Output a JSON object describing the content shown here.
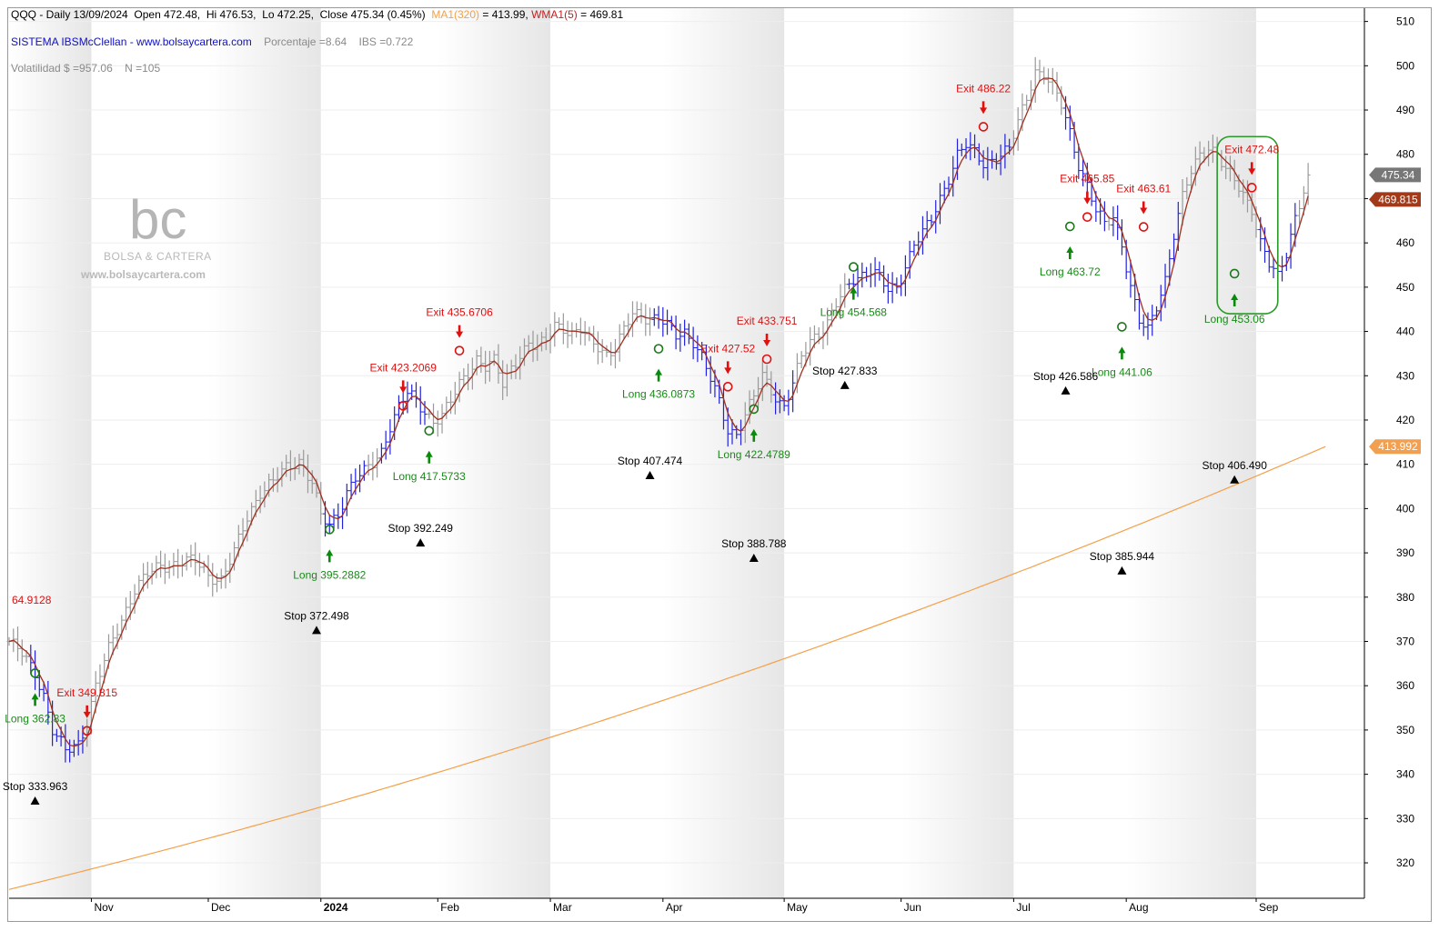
{
  "header": {
    "line1": {
      "symbol_info": "QQQ - Daily 13/09/2024",
      "open": "Open 472.48,",
      "high": "Hi 476.53,",
      "low": "Lo 472.25,",
      "close": "Close 475.34 (0.45%)",
      "ma_label": "MA1(320)",
      "ma_value": "= 413.99,",
      "wma_label": "WMA1(5)",
      "wma_value": "= 469.81"
    },
    "line2": {
      "system": "SISTEMA IBSMcClellan",
      "site": "- www.bolsaycartera.com",
      "porcentaje": "Porcentaje =8.64",
      "ibs": "IBS =0.722"
    },
    "line3": {
      "volatilidad": "Volatilidad $ =957.06",
      "n": "N =105"
    }
  },
  "watermark": {
    "logo_text": "bc",
    "brand": "BOLSA & CARTERA",
    "url": "www.bolsaycartera.com"
  },
  "colors": {
    "up_bar": "#2222dd",
    "down_bar": "#999999",
    "wma_line": "#a03020",
    "ma_line": "#f4a04a",
    "long_text": "#1a8a1a",
    "exit_text": "#e01010",
    "stop_text": "#000000",
    "highlight_box": "#2a9a2a",
    "price_badge": "#777777",
    "wma_badge": "#a03a1a",
    "ma_badge": "#f0a050"
  },
  "chart_data": {
    "type": "candlestick-ohlc",
    "symbol": "QQQ",
    "timeframe": "Daily",
    "ylim": [
      312,
      513
    ],
    "yticks": [
      320,
      330,
      340,
      350,
      360,
      370,
      380,
      390,
      400,
      410,
      420,
      430,
      440,
      450,
      460,
      470,
      480,
      490,
      500,
      510
    ],
    "xlim": [
      0,
      313
    ],
    "months": [
      {
        "label": "Nov",
        "bar": 19
      },
      {
        "label": "Dec",
        "bar": 46
      },
      {
        "label": "2024",
        "bar": 72,
        "bold": true
      },
      {
        "label": "Feb",
        "bar": 99
      },
      {
        "label": "Mar",
        "bar": 125
      },
      {
        "label": "Apr",
        "bar": 151
      },
      {
        "label": "May",
        "bar": 179
      },
      {
        "label": "Jun",
        "bar": 206
      },
      {
        "label": "Jul",
        "bar": 232
      },
      {
        "label": "Aug",
        "bar": 258
      },
      {
        "label": "Sep",
        "bar": 288
      }
    ],
    "shaded_bands": [
      [
        0,
        19
      ],
      [
        46,
        72
      ],
      [
        99,
        125
      ],
      [
        151,
        179
      ],
      [
        206,
        232
      ],
      [
        258,
        288
      ]
    ],
    "price_anchors": [
      [
        0,
        370
      ],
      [
        3,
        367
      ],
      [
        6,
        363
      ],
      [
        8,
        358
      ],
      [
        10,
        350
      ],
      [
        13,
        345
      ],
      [
        16,
        347
      ],
      [
        18,
        352
      ],
      [
        20,
        360
      ],
      [
        23,
        368
      ],
      [
        26,
        375
      ],
      [
        29,
        382
      ],
      [
        32,
        385
      ],
      [
        35,
        387
      ],
      [
        40,
        388
      ],
      [
        43,
        388
      ],
      [
        46,
        385
      ],
      [
        49,
        384
      ],
      [
        52,
        390
      ],
      [
        55,
        398
      ],
      [
        58,
        404
      ],
      [
        61,
        406
      ],
      [
        64,
        409
      ],
      [
        67,
        411
      ],
      [
        70,
        406
      ],
      [
        72,
        398
      ],
      [
        74,
        396
      ],
      [
        76,
        399
      ],
      [
        78,
        404
      ],
      [
        80,
        407
      ],
      [
        82,
        408
      ],
      [
        84,
        410
      ],
      [
        86,
        413
      ],
      [
        88,
        419
      ],
      [
        90,
        423
      ],
      [
        92,
        426
      ],
      [
        94,
        424
      ],
      [
        96,
        422
      ],
      [
        98,
        420
      ],
      [
        100,
        421
      ],
      [
        102,
        424
      ],
      [
        104,
        428
      ],
      [
        106,
        431
      ],
      [
        108,
        434
      ],
      [
        110,
        432
      ],
      [
        112,
        433
      ],
      [
        114,
        428
      ],
      [
        116,
        432
      ],
      [
        118,
        435
      ],
      [
        120,
        437
      ],
      [
        122,
        436
      ],
      [
        124,
        438
      ],
      [
        126,
        442
      ],
      [
        128,
        441
      ],
      [
        130,
        439
      ],
      [
        132,
        440
      ],
      [
        134,
        438
      ],
      [
        136,
        437
      ],
      [
        138,
        435
      ],
      [
        140,
        436
      ],
      [
        142,
        440
      ],
      [
        144,
        444
      ],
      [
        146,
        444
      ],
      [
        148,
        443
      ],
      [
        150,
        443
      ],
      [
        152,
        441
      ],
      [
        154,
        439
      ],
      [
        156,
        440
      ],
      [
        158,
        438
      ],
      [
        160,
        434
      ],
      [
        162,
        429
      ],
      [
        164,
        424
      ],
      [
        166,
        418
      ],
      [
        168,
        417
      ],
      [
        170,
        421
      ],
      [
        172,
        425
      ],
      [
        174,
        430
      ],
      [
        176,
        427
      ],
      [
        178,
        424
      ],
      [
        179,
        423
      ],
      [
        181,
        428
      ],
      [
        183,
        434
      ],
      [
        185,
        438
      ],
      [
        187,
        440
      ],
      [
        189,
        442
      ],
      [
        191,
        446
      ],
      [
        193,
        449
      ],
      [
        195,
        452
      ],
      [
        197,
        453
      ],
      [
        199,
        454
      ],
      [
        201,
        452
      ],
      [
        203,
        449
      ],
      [
        205,
        450
      ],
      [
        207,
        455
      ],
      [
        209,
        460
      ],
      [
        211,
        462
      ],
      [
        213,
        465
      ],
      [
        215,
        470
      ],
      [
        217,
        475
      ],
      [
        219,
        480
      ],
      [
        221,
        482
      ],
      [
        223,
        480
      ],
      [
        225,
        478
      ],
      [
        227,
        479
      ],
      [
        229,
        480
      ],
      [
        231,
        481
      ],
      [
        233,
        487
      ],
      [
        235,
        493
      ],
      [
        237,
        499
      ],
      [
        239,
        498
      ],
      [
        241,
        495
      ],
      [
        243,
        491
      ],
      [
        245,
        485
      ],
      [
        247,
        478
      ],
      [
        249,
        473
      ],
      [
        251,
        467
      ],
      [
        253,
        464
      ],
      [
        255,
        466
      ],
      [
        257,
        460
      ],
      [
        259,
        450
      ],
      [
        261,
        442
      ],
      [
        263,
        440
      ],
      [
        265,
        446
      ],
      [
        267,
        452
      ],
      [
        269,
        462
      ],
      [
        271,
        470
      ],
      [
        273,
        476
      ],
      [
        275,
        480
      ],
      [
        277,
        482
      ],
      [
        279,
        480
      ],
      [
        281,
        476
      ],
      [
        283,
        474
      ],
      [
        285,
        471
      ],
      [
        287,
        468
      ],
      [
        289,
        460
      ],
      [
        291,
        455
      ],
      [
        293,
        452
      ],
      [
        295,
        458
      ],
      [
        297,
        466
      ],
      [
        299,
        472
      ],
      [
        300,
        475.34
      ]
    ],
    "highlighted_up_ranges": [
      [
        5,
        17
      ],
      [
        73,
        82
      ],
      [
        86,
        96
      ],
      [
        149,
        160
      ],
      [
        160,
        169
      ],
      [
        177,
        181
      ],
      [
        194,
        201
      ],
      [
        201,
        231
      ],
      [
        244,
        253
      ],
      [
        255,
        270
      ],
      [
        289,
        297
      ]
    ],
    "wma_last": 469.815,
    "ma320": {
      "name": "MA1(320)",
      "start": 314,
      "end": 413.992
    },
    "long_signals": [
      {
        "bar": 6,
        "price": 362.83,
        "label": "Long 362.83"
      },
      {
        "bar": 74,
        "price": 395.2882,
        "label": "Long 395.2882"
      },
      {
        "bar": 97,
        "price": 417.5733,
        "label": "Long 417.5733"
      },
      {
        "bar": 150,
        "price": 436.0873,
        "label": "Long 436.0873"
      },
      {
        "bar": 172,
        "price": 422.4789,
        "label": "Long 422.4789"
      },
      {
        "bar": 195,
        "price": 454.568,
        "label": "Long 454.568"
      },
      {
        "bar": 245,
        "price": 463.72,
        "label": "Long 463.72"
      },
      {
        "bar": 257,
        "price": 441.06,
        "label": "Long 441.06"
      },
      {
        "bar": 283,
        "price": 453.06,
        "label": "Long 453.06"
      }
    ],
    "exit_signals": [
      {
        "bar": 18,
        "price": 349.815,
        "label": "Exit 349.815"
      },
      {
        "bar": 91,
        "price": 423.2069,
        "label": "Exit 423.2069"
      },
      {
        "bar": 104,
        "price": 435.6706,
        "label": "Exit 435.6706"
      },
      {
        "bar": 166,
        "price": 427.52,
        "label": "Exit 427.52"
      },
      {
        "bar": 175,
        "price": 433.751,
        "label": "Exit 433.751"
      },
      {
        "bar": 225,
        "price": 486.22,
        "label": "Exit 486.22"
      },
      {
        "bar": 249,
        "price": 465.85,
        "label": "Exit 465.85"
      },
      {
        "bar": 262,
        "price": 463.61,
        "label": "Exit 463.61"
      },
      {
        "bar": 287,
        "price": 472.48,
        "label": "Exit 472.48"
      }
    ],
    "stop_levels": [
      {
        "bar": 6,
        "value": 333.963,
        "label": "Stop 333.963"
      },
      {
        "bar": 71,
        "value": 372.498,
        "label": "Stop 372.498"
      },
      {
        "bar": 95,
        "value": 392.249,
        "label": "Stop 392.249"
      },
      {
        "bar": 148,
        "value": 407.474,
        "label": "Stop 407.474"
      },
      {
        "bar": 172,
        "value": 388.788,
        "label": "Stop 388.788"
      },
      {
        "bar": 193,
        "value": 427.833,
        "label": "Stop 427.833"
      },
      {
        "bar": 244,
        "value": 426.586,
        "label": "Stop 426.586"
      },
      {
        "bar": 257,
        "value": 385.944,
        "label": "Stop 385.944"
      },
      {
        "bar": 283,
        "value": 406.49,
        "label": "Stop 406.490"
      }
    ],
    "left_value_label": "64.9128",
    "last_price_badges": [
      {
        "value": 475.34,
        "label": "475.34"
      },
      {
        "value": 469.815,
        "label": "469.815"
      },
      {
        "value": 413.992,
        "label": "413.992"
      }
    ],
    "highlight_box": {
      "bar_from": 279,
      "bar_to": 293,
      "price_top": 484,
      "price_bottom": 444
    }
  }
}
